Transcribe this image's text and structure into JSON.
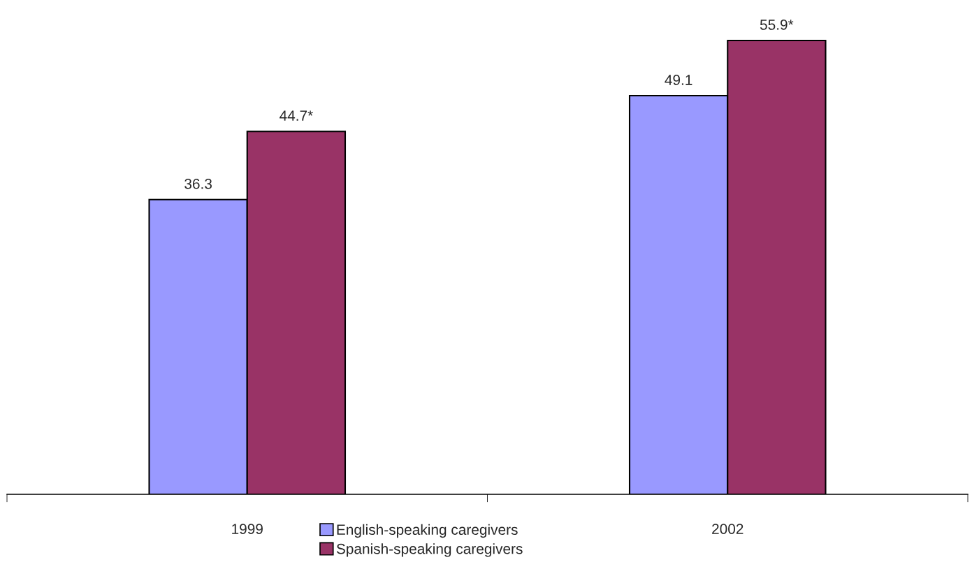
{
  "chart_data": {
    "type": "bar",
    "categories": [
      "1999",
      "2002"
    ],
    "series": [
      {
        "name": "English-speaking caregivers",
        "color": "#9999ff",
        "values": [
          36.3,
          49.1
        ],
        "value_labels": [
          "36.3",
          "49.1"
        ]
      },
      {
        "name": "Spanish-speaking caregivers",
        "color": "#993366",
        "values": [
          44.7,
          55.9
        ],
        "value_labels": [
          "44.7*",
          "55.9*"
        ]
      }
    ],
    "legend": "bottom"
  }
}
